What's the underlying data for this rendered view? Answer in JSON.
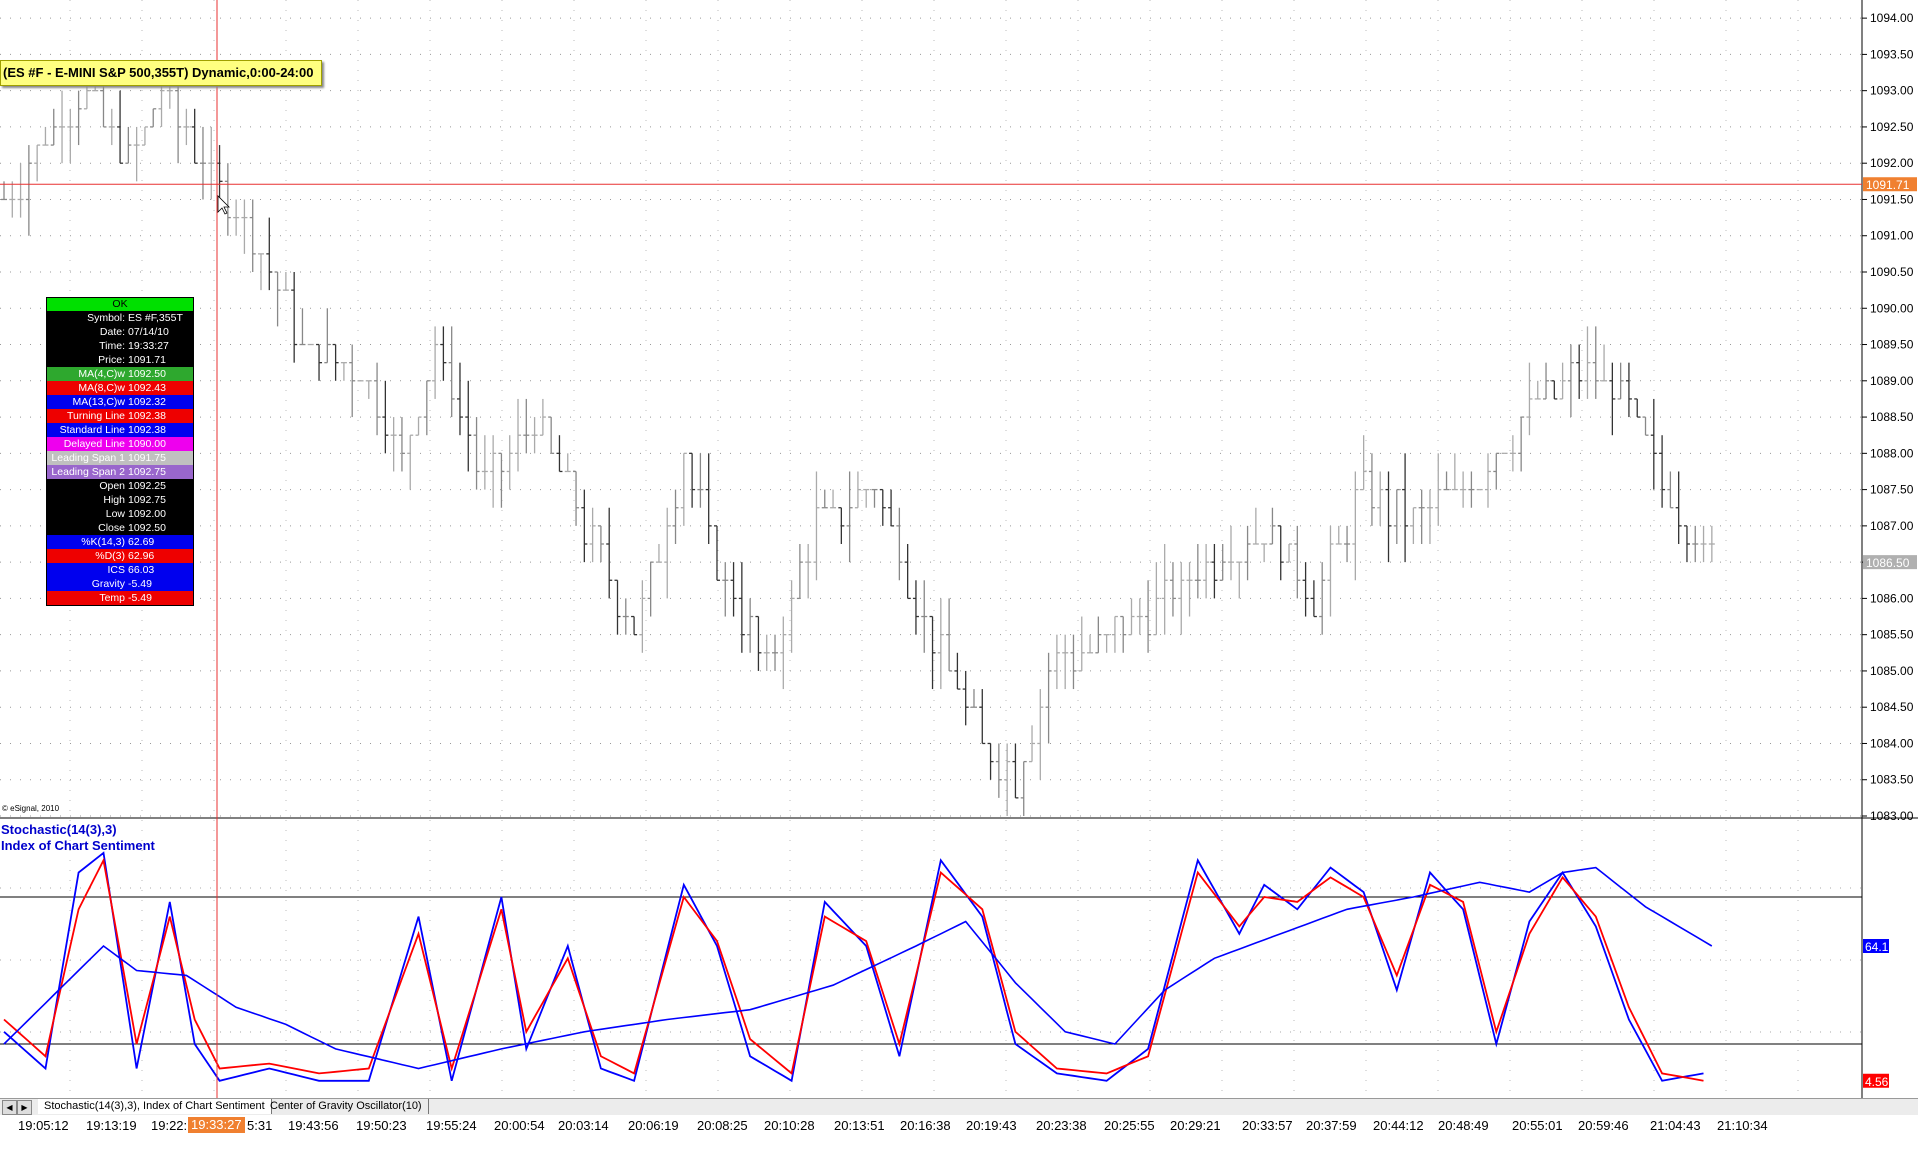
{
  "title": "(ES #F - E-MINI S&P 500,355T) Dynamic,0:00-24:00",
  "copyright": "© eSignal, 2010",
  "colors": {
    "bar": "#333333",
    "crosshair": "#e83030",
    "k_line": "#ff0000",
    "d_line": "#0000ff",
    "ics_line": "#0000ff",
    "price_tag": "#f08030",
    "last_tag": "#b0b0b0"
  },
  "cursor_window": {
    "status": "OK",
    "rows": [
      {
        "label": "Symbol:",
        "value": "ES #F,355T",
        "bg": "#000000",
        "fg": "#ffffff"
      },
      {
        "label": "Date:",
        "value": "07/14/10",
        "bg": "#000000",
        "fg": "#ffffff"
      },
      {
        "label": "Time:",
        "value": "19:33:27",
        "bg": "#000000",
        "fg": "#ffffff"
      },
      {
        "label": "Price:",
        "value": "1091.71",
        "bg": "#000000",
        "fg": "#ffffff"
      },
      {
        "label": "MA(4,C)w",
        "value": "1092.50",
        "bg": "#2ea82e",
        "fg": "#ffffff"
      },
      {
        "label": "MA(8,C)w",
        "value": "1092.43",
        "bg": "#ee0000",
        "fg": "#ffffff"
      },
      {
        "label": "MA(13,C)w",
        "value": "1092.32",
        "bg": "#0000ee",
        "fg": "#ffffff"
      },
      {
        "label": "Turning Line",
        "value": "1092.38",
        "bg": "#ee0000",
        "fg": "#ffffff"
      },
      {
        "label": "Standard Line",
        "value": "1092.38",
        "bg": "#0000ee",
        "fg": "#ffffff"
      },
      {
        "label": "Delayed Line",
        "value": "1090.00",
        "bg": "#ee00ee",
        "fg": "#ffffff"
      },
      {
        "label": "Leading Span 1",
        "value": "1091.75",
        "bg": "#c0c0c0",
        "fg": "#ffffff"
      },
      {
        "label": "Leading Span 2",
        "value": "1092.75",
        "bg": "#9966cc",
        "fg": "#ffffff"
      },
      {
        "label": "Open",
        "value": "1092.25",
        "bg": "#000000",
        "fg": "#ffffff"
      },
      {
        "label": "High",
        "value": "1092.75",
        "bg": "#000000",
        "fg": "#ffffff"
      },
      {
        "label": "Low",
        "value": "1092.00",
        "bg": "#000000",
        "fg": "#ffffff"
      },
      {
        "label": "Close",
        "value": "1092.50",
        "bg": "#000000",
        "fg": "#ffffff"
      },
      {
        "label": "%K(14,3)",
        "value": "62.69",
        "bg": "#0000ee",
        "fg": "#ffffff"
      },
      {
        "label": "%D(3)",
        "value": "62.96",
        "bg": "#ee0000",
        "fg": "#ffffff"
      },
      {
        "label": "ICS",
        "value": "66.03",
        "bg": "#0000ee",
        "fg": "#ffffff"
      },
      {
        "label": "Gravity",
        "value": "-5.49",
        "bg": "#0000ee",
        "fg": "#ffffff"
      },
      {
        "label": "Temp",
        "value": "-5.49",
        "bg": "#ee0000",
        "fg": "#ffffff"
      }
    ]
  },
  "osc_title": {
    "line1": "Stochastic(14(3),3)",
    "line2": "Index of Chart Sentiment"
  },
  "tabs": [
    {
      "label": "Stochastic(14(3),3), Index of Chart Sentiment",
      "active": true
    },
    {
      "label": "Center of Gravity Oscillator(10)",
      "active": false
    }
  ],
  "cursor_time": "19:33:27",
  "chart_data": [
    {
      "type": "bar",
      "subtype": "ohlc-price",
      "ylim": [
        1083.0,
        1094.25
      ],
      "yticks": [
        "1094.00",
        "1093.50",
        "1093.00",
        "1092.50",
        "1092.00",
        "1091.50",
        "1091.00",
        "1090.50",
        "1090.00",
        "1089.50",
        "1089.00",
        "1088.50",
        "1088.00",
        "1087.50",
        "1087.00",
        "1086.50",
        "1086.00",
        "1085.50",
        "1085.00",
        "1084.50",
        "1084.00",
        "1083.50",
        "1083.00"
      ],
      "current_price_label": "1091.71",
      "last_price_label": "1086.50",
      "close_path": [
        [
          0,
          1091.5
        ],
        [
          6,
          1092.5
        ],
        [
          10,
          1093.0
        ],
        [
          15,
          1092.0
        ],
        [
          19,
          1093.0
        ],
        [
          24,
          1092.0
        ],
        [
          30,
          1091.0
        ],
        [
          36,
          1089.5
        ],
        [
          44,
          1089.0
        ],
        [
          48,
          1088.0
        ],
        [
          52,
          1089.5
        ],
        [
          58,
          1087.5
        ],
        [
          64,
          1088.5
        ],
        [
          70,
          1087.0
        ],
        [
          76,
          1085.5
        ],
        [
          82,
          1088.0
        ],
        [
          86,
          1086.5
        ],
        [
          92,
          1085.0
        ],
        [
          98,
          1087.0
        ],
        [
          105,
          1087.5
        ],
        [
          112,
          1085.5
        ],
        [
          118,
          1084.0
        ],
        [
          122,
          1083.5
        ],
        [
          126,
          1085.0
        ],
        [
          133,
          1085.5
        ],
        [
          140,
          1086.0
        ],
        [
          146,
          1086.5
        ],
        [
          152,
          1087.0
        ],
        [
          158,
          1086.0
        ],
        [
          164,
          1087.5
        ],
        [
          170,
          1087.0
        ],
        [
          176,
          1087.5
        ],
        [
          180,
          1088.0
        ],
        [
          184,
          1088.5
        ],
        [
          188,
          1089.0
        ],
        [
          194,
          1089.0
        ],
        [
          200,
          1087.5
        ],
        [
          206,
          1086.5
        ]
      ],
      "notes": "OHLC bars, closes estimated from gridlines"
    },
    {
      "type": "line",
      "subtype": "oscillator",
      "ylim": [
        0,
        100
      ],
      "levels": [
        80,
        20
      ],
      "series": [
        {
          "name": "%K(14,3)",
          "color": "#0000ff",
          "last_label": "",
          "points": [
            [
              0,
              25
            ],
            [
              5,
              10
            ],
            [
              9,
              90
            ],
            [
              12,
              98
            ],
            [
              16,
              10
            ],
            [
              20,
              78
            ],
            [
              23,
              20
            ],
            [
              26,
              5
            ],
            [
              32,
              10
            ],
            [
              38,
              5
            ],
            [
              44,
              5
            ],
            [
              50,
              72
            ],
            [
              54,
              5
            ],
            [
              60,
              80
            ],
            [
              63,
              18
            ],
            [
              68,
              60
            ],
            [
              72,
              10
            ],
            [
              76,
              5
            ],
            [
              82,
              85
            ],
            [
              86,
              60
            ],
            [
              90,
              15
            ],
            [
              95,
              5
            ],
            [
              99,
              78
            ],
            [
              104,
              60
            ],
            [
              108,
              15
            ],
            [
              113,
              95
            ],
            [
              118,
              72
            ],
            [
              122,
              20
            ],
            [
              127,
              8
            ],
            [
              133,
              5
            ],
            [
              138,
              18
            ],
            [
              144,
              95
            ],
            [
              149,
              65
            ],
            [
              152,
              85
            ],
            [
              156,
              75
            ],
            [
              160,
              92
            ],
            [
              164,
              82
            ],
            [
              168,
              42
            ],
            [
              172,
              90
            ],
            [
              176,
              75
            ],
            [
              180,
              20
            ],
            [
              184,
              70
            ],
            [
              188,
              90
            ],
            [
              192,
              68
            ],
            [
              196,
              30
            ],
            [
              200,
              5
            ],
            [
              205,
              8
            ]
          ]
        },
        {
          "name": "%D(3)",
          "color": "#ff0000",
          "last_label": "4.56",
          "points": [
            [
              0,
              30
            ],
            [
              5,
              15
            ],
            [
              9,
              75
            ],
            [
              12,
              95
            ],
            [
              16,
              20
            ],
            [
              20,
              72
            ],
            [
              23,
              30
            ],
            [
              26,
              10
            ],
            [
              32,
              12
            ],
            [
              38,
              8
            ],
            [
              44,
              10
            ],
            [
              50,
              65
            ],
            [
              54,
              10
            ],
            [
              60,
              75
            ],
            [
              63,
              25
            ],
            [
              68,
              55
            ],
            [
              72,
              15
            ],
            [
              76,
              8
            ],
            [
              82,
              80
            ],
            [
              86,
              62
            ],
            [
              90,
              22
            ],
            [
              95,
              8
            ],
            [
              99,
              72
            ],
            [
              104,
              62
            ],
            [
              108,
              20
            ],
            [
              113,
              90
            ],
            [
              118,
              75
            ],
            [
              122,
              25
            ],
            [
              127,
              10
            ],
            [
              133,
              8
            ],
            [
              138,
              15
            ],
            [
              144,
              90
            ],
            [
              149,
              68
            ],
            [
              152,
              80
            ],
            [
              156,
              78
            ],
            [
              160,
              88
            ],
            [
              164,
              80
            ],
            [
              168,
              48
            ],
            [
              172,
              85
            ],
            [
              176,
              78
            ],
            [
              180,
              25
            ],
            [
              184,
              65
            ],
            [
              188,
              88
            ],
            [
              192,
              72
            ],
            [
              196,
              35
            ],
            [
              200,
              8
            ],
            [
              205,
              5
            ]
          ]
        },
        {
          "name": "ICS",
          "color": "#0000ff",
          "last_label": "64.1",
          "points": [
            [
              0,
              20
            ],
            [
              6,
              40
            ],
            [
              12,
              60
            ],
            [
              16,
              50
            ],
            [
              22,
              48
            ],
            [
              28,
              35
            ],
            [
              34,
              28
            ],
            [
              40,
              18
            ],
            [
              50,
              10
            ],
            [
              60,
              18
            ],
            [
              70,
              25
            ],
            [
              80,
              30
            ],
            [
              90,
              34
            ],
            [
              100,
              44
            ],
            [
              110,
              60
            ],
            [
              116,
              70
            ],
            [
              122,
              45
            ],
            [
              128,
              25
            ],
            [
              134,
              20
            ],
            [
              140,
              42
            ],
            [
              146,
              55
            ],
            [
              154,
              65
            ],
            [
              162,
              75
            ],
            [
              170,
              80
            ],
            [
              178,
              86
            ],
            [
              184,
              82
            ],
            [
              188,
              90
            ],
            [
              192,
              92
            ],
            [
              198,
              76
            ],
            [
              206,
              60
            ]
          ]
        }
      ]
    }
  ],
  "time_axis": [
    "19:05:12",
    "19:13:19",
    "19:22:",
    "5:31",
    "19:43:56",
    "19:50:23",
    "19:55:24",
    "20:00:54",
    "20:03:14",
    "20:06:19",
    "20:08:25",
    "20:10:28",
    "20:13:51",
    "20:16:38",
    "20:19:43",
    "20:23:38",
    "20:25:55",
    "20:29:21",
    "20:33:57",
    "20:37:59",
    "20:44:12",
    "20:48:49",
    "20:55:01",
    "20:59:46",
    "21:04:43",
    "21:10:34"
  ]
}
